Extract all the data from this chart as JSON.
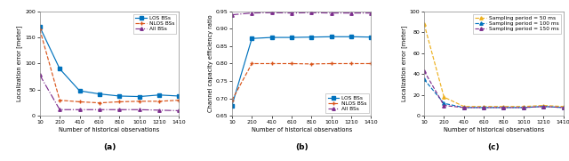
{
  "x_vals": [
    10,
    210,
    410,
    610,
    810,
    1010,
    1210,
    1410
  ],
  "x_ticks": [
    10,
    210,
    410,
    610,
    810,
    1010,
    1210,
    1410
  ],
  "x_label": "Number of historical observations",
  "a_los": [
    170,
    90,
    48,
    42,
    38,
    37,
    40,
    38
  ],
  "a_nlos": [
    165,
    30,
    27,
    25,
    27,
    28,
    28,
    30
  ],
  "a_all": [
    78,
    12,
    12,
    12,
    12,
    12,
    11,
    10
  ],
  "a_ylabel": "Localization error [meter]",
  "a_ylim": [
    0,
    200
  ],
  "a_yticks": [
    0,
    50,
    100,
    150,
    200
  ],
  "a_label": "(a)",
  "b_los": [
    0.68,
    0.872,
    0.875,
    0.875,
    0.876,
    0.877,
    0.877,
    0.876
  ],
  "b_nlos": [
    0.695,
    0.8,
    0.8,
    0.8,
    0.799,
    0.8,
    0.8,
    0.8
  ],
  "b_all": [
    0.94,
    0.945,
    0.946,
    0.945,
    0.946,
    0.945,
    0.945,
    0.945
  ],
  "b_ylabel": "Channel capacity efficiency ratio",
  "b_ylim": [
    0.65,
    0.95
  ],
  "b_yticks": [
    0.65,
    0.7,
    0.75,
    0.8,
    0.85,
    0.9,
    0.95
  ],
  "b_label": "(b)",
  "c_50ms": [
    88,
    18,
    9,
    9,
    9,
    9,
    10,
    9
  ],
  "c_100ms": [
    35,
    12,
    8,
    8,
    8,
    8,
    9,
    8
  ],
  "c_150ms": [
    43,
    10,
    8,
    8,
    8,
    8,
    9,
    8
  ],
  "c_ylabel": "Localization error [meter]",
  "c_ylim": [
    0,
    100
  ],
  "c_yticks": [
    0,
    20,
    40,
    60,
    80,
    100
  ],
  "c_label": "(c)",
  "color_los": "#0072BD",
  "color_nlos": "#D95319",
  "color_all": "#7E2F8E",
  "color_50ms": "#EDB120",
  "color_100ms": "#0072BD",
  "color_150ms": "#7E2F8E",
  "figsize": [
    6.4,
    1.81
  ],
  "dpi": 100,
  "tick_fontsize": 4.5,
  "label_fontsize": 4.8,
  "legend_fontsize": 4.2,
  "sublabel_fontsize": 6.5
}
